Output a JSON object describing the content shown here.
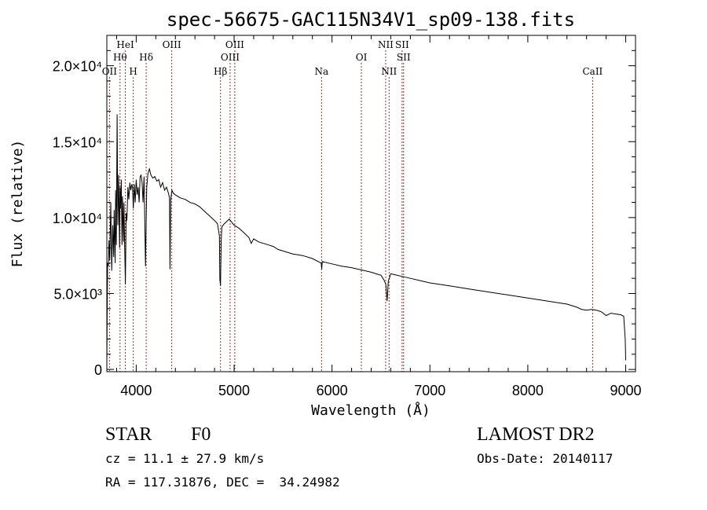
{
  "chart_data": {
    "type": "line",
    "title": "spec-56675-GAC115N34V1_sp09-138.fits",
    "xlabel": "Wavelength (Å)",
    "ylabel": "Flux (relative)",
    "xlim": [
      3700,
      9100
    ],
    "ylim": [
      -150,
      22000
    ],
    "grid": false,
    "x_ticks": [
      {
        "value": 4000,
        "label": "4000"
      },
      {
        "value": 5000,
        "label": "5000"
      },
      {
        "value": 6000,
        "label": "6000"
      },
      {
        "value": 7000,
        "label": "7000"
      },
      {
        "value": 8000,
        "label": "8000"
      },
      {
        "value": 9000,
        "label": "9000"
      }
    ],
    "y_ticks": [
      {
        "value": 0,
        "label": "0"
      },
      {
        "value": 5000,
        "label": "5.0×10³"
      },
      {
        "value": 10000,
        "label": "1.0×10⁴"
      },
      {
        "value": 15000,
        "label": "1.5×10⁴"
      },
      {
        "value": 20000,
        "label": "2.0×10⁴"
      }
    ],
    "series": [
      {
        "x": [
          3700,
          3703,
          3708,
          3715,
          3722,
          3730,
          3740,
          3750,
          3760,
          3770,
          3775,
          3785,
          3790,
          3797,
          3805,
          3812,
          3820,
          3830,
          3835,
          3840,
          3848,
          3855,
          3860,
          3870,
          3875,
          3880,
          3889,
          3897,
          3905,
          3915,
          3925,
          3935,
          3945,
          3955,
          3962,
          3970,
          3980,
          3990,
          4000,
          4010,
          4020,
          4030,
          4040,
          4050,
          4060,
          4070,
          4080,
          4095,
          4102,
          4108,
          4120,
          4135,
          4150,
          4170,
          4190,
          4210,
          4230,
          4250,
          4270,
          4290,
          4310,
          4330,
          4340,
          4345,
          4352,
          4365,
          4380,
          4400,
          4450,
          4500,
          4550,
          4600,
          4650,
          4700,
          4750,
          4800,
          4830,
          4850,
          4855,
          4861,
          4868,
          4875,
          4900,
          4950,
          5000,
          5050,
          5100,
          5150,
          5175,
          5200,
          5250,
          5300,
          5350,
          5400,
          5450,
          5500,
          5600,
          5700,
          5800,
          5890,
          5895,
          5900,
          6000,
          6100,
          6200,
          6300,
          6400,
          6450,
          6500,
          6530,
          6550,
          6563,
          6575,
          6590,
          6600,
          6700,
          6800,
          6900,
          7000,
          7200,
          7400,
          7600,
          7800,
          8000,
          8200,
          8400,
          8500,
          8550,
          8600,
          8650,
          8700,
          8750,
          8800,
          8850,
          8900,
          8950,
          8980,
          8995,
          9000
        ],
        "y": [
          0,
          3500,
          7000,
          6800,
          8500,
          7200,
          11000,
          6500,
          9500,
          7400,
          10500,
          7000,
          11800,
          8200,
          16800,
          9500,
          12800,
          8000,
          12000,
          10600,
          12500,
          8200,
          11400,
          8400,
          11000,
          9000,
          5600,
          10300,
          9800,
          12000,
          11200,
          12300,
          11800,
          12200,
          12000,
          10600,
          12200,
          11000,
          12500,
          11500,
          12000,
          11000,
          12700,
          12800,
          12300,
          11000,
          12700,
          6800,
          9800,
          12000,
          12900,
          13200,
          12800,
          12600,
          12700,
          12400,
          12500,
          12000,
          12300,
          11800,
          12000,
          11600,
          11300,
          6600,
          11200,
          11800,
          11600,
          11500,
          11300,
          11200,
          11000,
          10900,
          10700,
          10400,
          10100,
          9800,
          9600,
          8800,
          5900,
          5500,
          8500,
          9400,
          9600,
          9900,
          9500,
          9300,
          9000,
          8700,
          8300,
          8600,
          8400,
          8300,
          8200,
          8100,
          7900,
          7800,
          7600,
          7500,
          7300,
          7000,
          6600,
          7100,
          6950,
          6800,
          6700,
          6550,
          6400,
          6300,
          6200,
          5900,
          5600,
          4500,
          5800,
          6100,
          6300,
          6150,
          6000,
          5850,
          5700,
          5500,
          5300,
          5100,
          4900,
          4700,
          4500,
          4300,
          4100,
          3950,
          3900,
          3950,
          3900,
          3800,
          3550,
          3700,
          3650,
          3600,
          3500,
          2000,
          600
        ]
      }
    ],
    "line_markers": [
      {
        "x": 3727,
        "label": "OII",
        "row": "low"
      },
      {
        "x": 3835,
        "label": "Hθ",
        "row": "mid"
      },
      {
        "x": 3889,
        "label": "HeI",
        "row": "high"
      },
      {
        "x": 3970,
        "label": "H",
        "row": "low"
      },
      {
        "x": 4102,
        "label": "Hδ",
        "row": "mid"
      },
      {
        "x": 4363,
        "label": "OIII",
        "row": "high"
      },
      {
        "x": 4861,
        "label": "Hβ",
        "row": "low"
      },
      {
        "x": 4959,
        "label": "OIII",
        "row": "mid"
      },
      {
        "x": 5007,
        "label": "OIII",
        "row": "high"
      },
      {
        "x": 5893,
        "label": "Na",
        "row": "low"
      },
      {
        "x": 6300,
        "label": "OI",
        "row": "mid"
      },
      {
        "x": 6548,
        "label": "NII",
        "row": "high"
      },
      {
        "x": 6583,
        "label": "NII",
        "row": "low"
      },
      {
        "x": 6716,
        "label": "SII",
        "row": "high"
      },
      {
        "x": 6731,
        "label": "SII",
        "row": "mid"
      },
      {
        "x": 8662,
        "label": "CaII",
        "row": "low"
      }
    ],
    "marker_color": "#a0302a"
  },
  "info": {
    "class": "STAR",
    "subclass": "F0",
    "survey": "LAMOST DR2",
    "cz": "cz = 11.1 ± 27.9 km/s",
    "obs_date": "Obs-Date: 20140117",
    "radec": "RA = 117.31876, DEC =  34.24982"
  }
}
